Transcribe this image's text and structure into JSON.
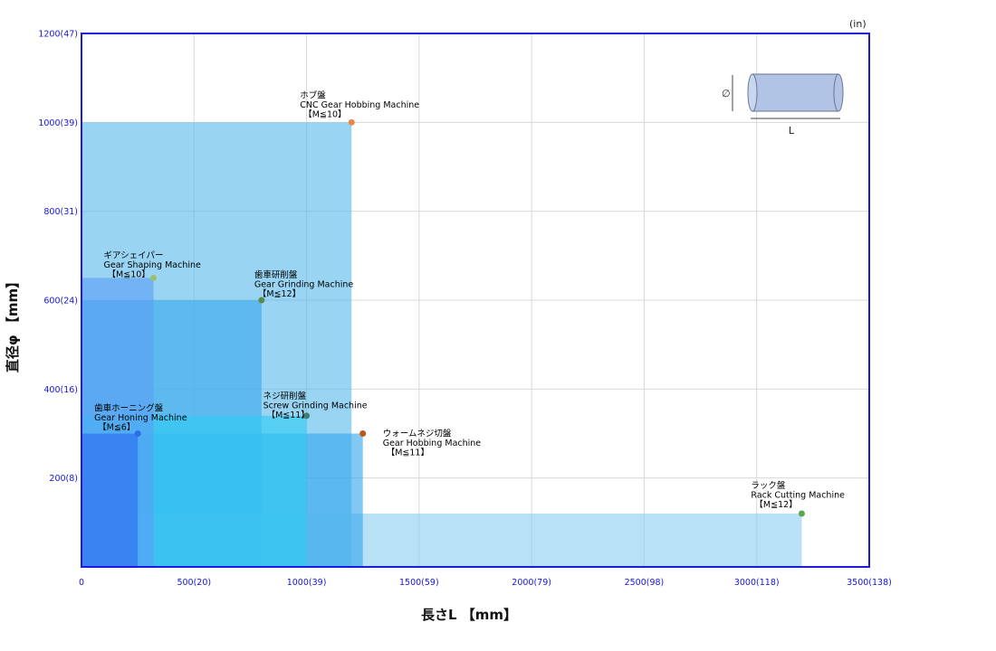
{
  "chart_data": {
    "type": "area",
    "unit_label": "(in)",
    "xlabel": "長さL 【mm】",
    "ylabel": "直径φ 【mm】",
    "xlim": [
      0,
      3500
    ],
    "ylim": [
      0,
      1200
    ],
    "x_ticks": [
      {
        "value": 0,
        "label": "0"
      },
      {
        "value": 500,
        "label": "500(20)"
      },
      {
        "value": 1000,
        "label": "1000(39)"
      },
      {
        "value": 1500,
        "label": "1500(59)"
      },
      {
        "value": 2000,
        "label": "2000(79)"
      },
      {
        "value": 2500,
        "label": "2500(98)"
      },
      {
        "value": 3000,
        "label": "3000(118)"
      },
      {
        "value": 3500,
        "label": "3500(138)"
      }
    ],
    "y_ticks": [
      {
        "value": 200,
        "label": "200(8)"
      },
      {
        "value": 400,
        "label": "400(16)"
      },
      {
        "value": 600,
        "label": "600(24)"
      },
      {
        "value": 800,
        "label": "800(31)"
      },
      {
        "value": 1000,
        "label": "1000(39)"
      },
      {
        "value": 1200,
        "label": "1200(47)"
      }
    ],
    "grid": true,
    "series": [
      {
        "key": "hobbing",
        "length": 1200,
        "diameter": 1000,
        "fill": "#5bbaec",
        "dot": "#e8854a",
        "lines": [
          "ホブ盤",
          "CNC Gear Hobbing Machine",
          "【M≦10】"
        ]
      },
      {
        "key": "shaping",
        "length": 320,
        "diameter": 650,
        "fill": "#5a9ef5",
        "dot": "#9bc06a",
        "lines": [
          "ギアシェイパー",
          "Gear Shaping Machine",
          "【M≦10】"
        ]
      },
      {
        "key": "grinding",
        "length": 800,
        "diameter": 600,
        "fill": "#3aa8eb",
        "dot": "#5a8a50",
        "lines": [
          "歯車研削盤",
          "Gear Grinding Machine",
          "【M≦12】"
        ]
      },
      {
        "key": "screw",
        "length": 1000,
        "diameter": 340,
        "fill": "#2ecbf2",
        "dot": "#3f7f72",
        "lines": [
          "ネジ研削盤",
          "Screw Grinding Machine",
          "【M≦11】"
        ]
      },
      {
        "key": "worm",
        "length": 1250,
        "diameter": 300,
        "fill": "#36a6ee",
        "dot": "#c1561a",
        "lines": [
          "ウォームネジ切盤",
          "Gear Hobbing Machine",
          "【M≦11】"
        ]
      },
      {
        "key": "honing",
        "length": 250,
        "diameter": 300,
        "fill": "#2f6cf0",
        "dot": "#2c6ee0",
        "lines": [
          "歯車ホーニング盤",
          "Gear Honing Machine",
          "【M≦6】"
        ]
      },
      {
        "key": "rack",
        "length": 3200,
        "diameter": 120,
        "fill": "#8ccff0",
        "dot": "#5aa84e",
        "lines": [
          "ラック盤",
          "Rack Cutting Machine",
          "【M≦12】"
        ]
      }
    ]
  },
  "diagram": {
    "phi_label": "∅",
    "length_label": "L"
  }
}
